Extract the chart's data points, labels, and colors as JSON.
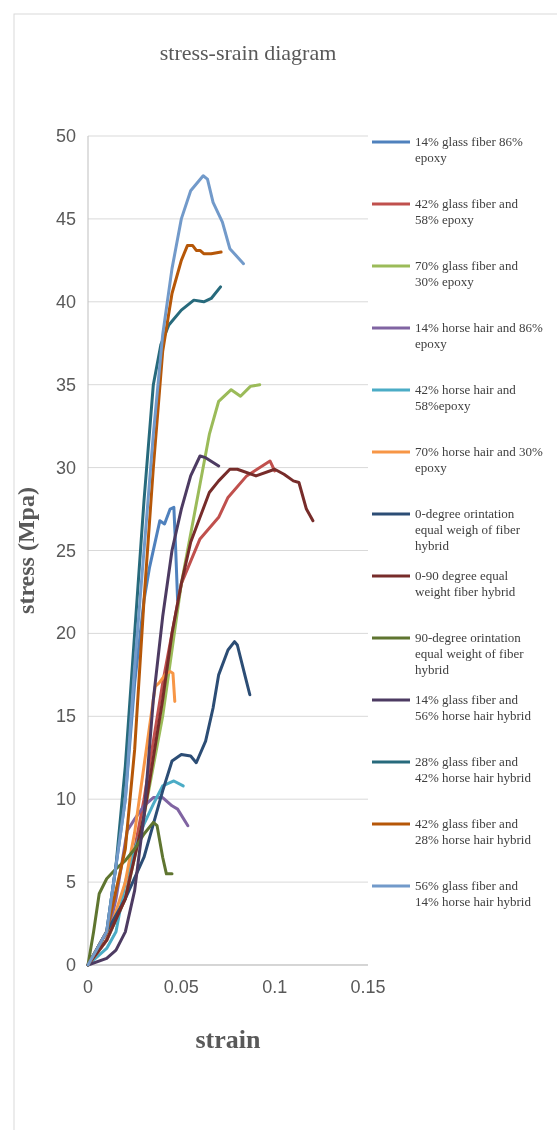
{
  "chart_data": {
    "type": "line",
    "title": "stress-srain diagram",
    "xlabel": "strain",
    "ylabel": "stress (Mpa)",
    "xlim": [
      0,
      0.15
    ],
    "xticks": [
      0,
      0.05,
      0.1,
      0.15
    ],
    "ylim": [
      0,
      50
    ],
    "yticks": [
      0,
      5,
      10,
      15,
      20,
      25,
      30,
      35,
      40,
      45,
      50
    ],
    "grid": "y",
    "legend": "right",
    "line_style": "solid",
    "marker": "none",
    "series": [
      {
        "name": "14% glass fiber 86% epoxy",
        "color": "#4f81bd",
        "x": [
          0,
          0.01,
          0.02,
          0.025,
          0.03,
          0.033,
          0.0385,
          0.041,
          0.044,
          0.046,
          0.047,
          0.048
        ],
        "values": [
          0,
          2,
          10,
          17,
          22,
          24,
          26.8,
          26.6,
          27.5,
          27.6,
          25,
          22
        ]
      },
      {
        "name": "42% glass fiber and 58% epoxy",
        "color": "#c0504d",
        "x": [
          0,
          0.01,
          0.02,
          0.03,
          0.04,
          0.05,
          0.06,
          0.07,
          0.075,
          0.085,
          0.0975,
          0.1
        ],
        "values": [
          0,
          1.5,
          4,
          10,
          17,
          23,
          25.7,
          27,
          28.2,
          29.5,
          30.4,
          29.8
        ]
      },
      {
        "name": "70% glass fiber and 30% epoxy",
        "color": "#9bbb59",
        "x": [
          0,
          0.01,
          0.02,
          0.03,
          0.04,
          0.05,
          0.055,
          0.06,
          0.065,
          0.07,
          0.0767,
          0.0817,
          0.087,
          0.092
        ],
        "values": [
          0,
          1.5,
          4,
          9,
          15,
          23,
          26,
          29,
          32,
          34,
          34.7,
          34.3,
          34.9,
          35
        ]
      },
      {
        "name": "14% horse hair and 86% epoxy",
        "color": "#8064a2",
        "x": [
          0,
          0.01,
          0.015,
          0.021,
          0.025,
          0.03,
          0.035,
          0.04,
          0.045,
          0.048,
          0.0535
        ],
        "values": [
          0,
          1.5,
          4,
          8.1,
          8.8,
          9.6,
          10.1,
          10.1,
          9.6,
          9.4,
          8.4
        ]
      },
      {
        "name": "42% horse hair and 58%epoxy",
        "color": "#4bacc6",
        "x": [
          0,
          0.01,
          0.015,
          0.02,
          0.025,
          0.03,
          0.035,
          0.04,
          0.046,
          0.051
        ],
        "values": [
          0,
          1,
          2,
          5,
          7,
          8.5,
          9.7,
          10.8,
          11.1,
          10.8
        ]
      },
      {
        "name": "70% horse hair and 30% epoxy",
        "color": "#f79646",
        "x": [
          0,
          0.01,
          0.02,
          0.025,
          0.03,
          0.036,
          0.038,
          0.042,
          0.044,
          0.0455,
          0.0465
        ],
        "values": [
          0,
          1.5,
          5,
          8,
          12,
          16.8,
          17,
          17.6,
          17.7,
          17.6,
          15.9
        ]
      },
      {
        "name": "0-degree orintation equal weigh of fiber hybrid",
        "color": "#2c4d75",
        "x": [
          0,
          0.01,
          0.02,
          0.03,
          0.035,
          0.04,
          0.045,
          0.05,
          0.055,
          0.058,
          0.063,
          0.067,
          0.07,
          0.075,
          0.0785,
          0.08,
          0.084,
          0.0867
        ],
        "values": [
          0,
          2,
          4,
          6.5,
          8.5,
          10.5,
          12.3,
          12.7,
          12.6,
          12.2,
          13.5,
          15.5,
          17.5,
          19,
          19.5,
          19.3,
          17.5,
          16.3
        ]
      },
      {
        "name": "0-90 degree equal weight fiber hybrid",
        "color": "#772c2a",
        "x": [
          0,
          0.01,
          0.02,
          0.03,
          0.04,
          0.045,
          0.05,
          0.055,
          0.06,
          0.065,
          0.07,
          0.076,
          0.08,
          0.09,
          0.1,
          0.105,
          0.11,
          0.113,
          0.117,
          0.1205
        ],
        "values": [
          0,
          1.5,
          4,
          9,
          16,
          20,
          23,
          25.5,
          27,
          28.5,
          29.2,
          29.9,
          29.9,
          29.5,
          29.9,
          29.6,
          29.2,
          29.1,
          27.5,
          26.8
        ]
      },
      {
        "name": "90-degree orintation equal weight of fiber hybrid",
        "color": "#5f7530",
        "x": [
          0,
          0.003,
          0.006,
          0.01,
          0.015,
          0.02,
          0.025,
          0.03,
          0.035,
          0.037,
          0.04,
          0.042,
          0.045
        ],
        "values": [
          0,
          2,
          4.3,
          5.2,
          5.8,
          6.3,
          7,
          7.9,
          8.6,
          8.4,
          6.5,
          5.5,
          5.5
        ]
      },
      {
        "name": "14% glass fiber and 56% horse hair hybrid",
        "color": "#4d3b62",
        "x": [
          0,
          0.01,
          0.015,
          0.02,
          0.025,
          0.03,
          0.035,
          0.04,
          0.045,
          0.05,
          0.055,
          0.06,
          0.063,
          0.07
        ],
        "values": [
          0,
          0.4,
          0.9,
          2,
          4.5,
          9,
          16,
          21,
          25,
          27.5,
          29.5,
          30.7,
          30.6,
          30.1
        ]
      },
      {
        "name": "28% glass fiber and 42% horse hair hybrid",
        "color": "#276a7c",
        "x": [
          0,
          0.01,
          0.015,
          0.02,
          0.025,
          0.03,
          0.035,
          0.039,
          0.0433,
          0.05,
          0.0567,
          0.062,
          0.066,
          0.071
        ],
        "values": [
          0,
          2,
          6,
          12,
          20,
          28,
          35,
          37.4,
          38.6,
          39.5,
          40.1,
          40,
          40.2,
          40.9
        ]
      },
      {
        "name": "42% glass fiber and 28% horse hair hybrid",
        "color": "#b65708",
        "x": [
          0,
          0.01,
          0.02,
          0.025,
          0.03,
          0.035,
          0.04,
          0.045,
          0.05,
          0.0533,
          0.056,
          0.058,
          0.06,
          0.062,
          0.066,
          0.0713
        ],
        "values": [
          0,
          2,
          7,
          13,
          22,
          30,
          37,
          40.5,
          42.5,
          43.4,
          43.4,
          43.1,
          43.1,
          42.9,
          42.9,
          43
        ]
      },
      {
        "name": "56% glass fiber and 14% horse hair hybrid",
        "color": "#729aca",
        "x": [
          0,
          0.01,
          0.02,
          0.025,
          0.03,
          0.035,
          0.04,
          0.045,
          0.05,
          0.055,
          0.0617,
          0.064,
          0.067,
          0.072,
          0.076,
          0.0833
        ],
        "values": [
          0,
          2,
          10,
          18,
          25,
          32,
          38,
          42,
          45,
          46.7,
          47.6,
          47.4,
          46,
          44.8,
          43.2,
          42.3
        ]
      }
    ]
  }
}
